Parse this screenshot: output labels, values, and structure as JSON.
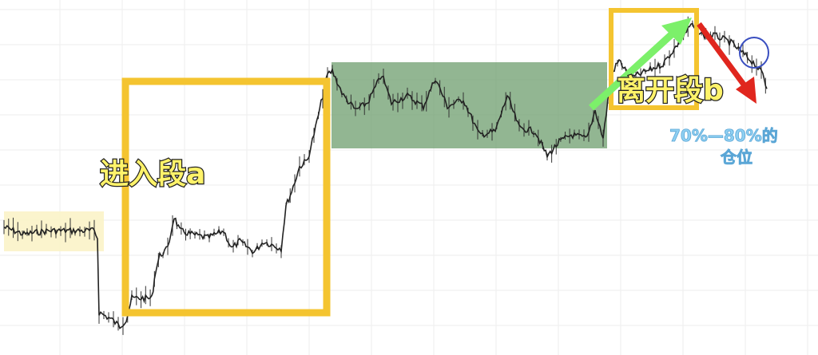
{
  "chart_data": {
    "type": "line",
    "title": "",
    "xlabel": "",
    "ylabel": "",
    "grid": true,
    "x": [
      0.5,
      3,
      6,
      9,
      11.8,
      12.2,
      12.4,
      14,
      15,
      15.8,
      16.5,
      19,
      19.5,
      20,
      21,
      21.8,
      22.5,
      24,
      26,
      28,
      29,
      30,
      31.8,
      33,
      35.2,
      35.8,
      36.5,
      37.5,
      38.5,
      39.5,
      40.2,
      41,
      41.6,
      43,
      44.5,
      46,
      47.8,
      49,
      51,
      53,
      54.5,
      56,
      58,
      60,
      62,
      63.5,
      65,
      67,
      68.5,
      70,
      71.5,
      73.5,
      74.5,
      75.5,
      76.5,
      77.5,
      79,
      81,
      83,
      85,
      86.5,
      88,
      89.5,
      91.5,
      93,
      94.5,
      95.5,
      96
    ],
    "values": [
      36,
      34,
      35,
      35,
      35,
      33,
      12,
      10,
      8,
      10,
      16,
      16,
      24,
      28,
      30,
      39,
      35,
      34,
      33,
      35,
      30,
      32,
      29,
      32,
      30,
      42,
      46,
      53,
      55,
      64,
      71,
      79,
      80,
      73,
      69,
      71,
      79,
      71,
      73,
      70,
      78,
      70,
      72,
      62,
      63,
      73,
      64,
      63,
      56,
      60,
      62,
      61,
      69,
      61,
      79,
      83,
      78,
      80,
      82,
      88,
      93,
      90,
      90,
      88,
      85,
      82,
      79,
      75
    ],
    "series_color": "#222222",
    "annotations": [
      {
        "text": "进入段a",
        "type": "box",
        "color": "#F4C430"
      },
      {
        "text": "离开段b",
        "type": "box",
        "color": "#F4C430"
      },
      {
        "text": "70%—80%的",
        "color": "#7EC4EC"
      },
      {
        "text": "仓位",
        "color": "#7EC4EC"
      }
    ],
    "zones": [
      {
        "kind": "consolidation",
        "color": "#FBF3C8"
      },
      {
        "kind": "consolidation",
        "color": "#6E9E6E"
      }
    ],
    "arrows": [
      {
        "direction": "up",
        "color": "#7CF06A"
      },
      {
        "direction": "down",
        "color": "#E0261E"
      }
    ],
    "circle_color": "#3A4FC0"
  }
}
